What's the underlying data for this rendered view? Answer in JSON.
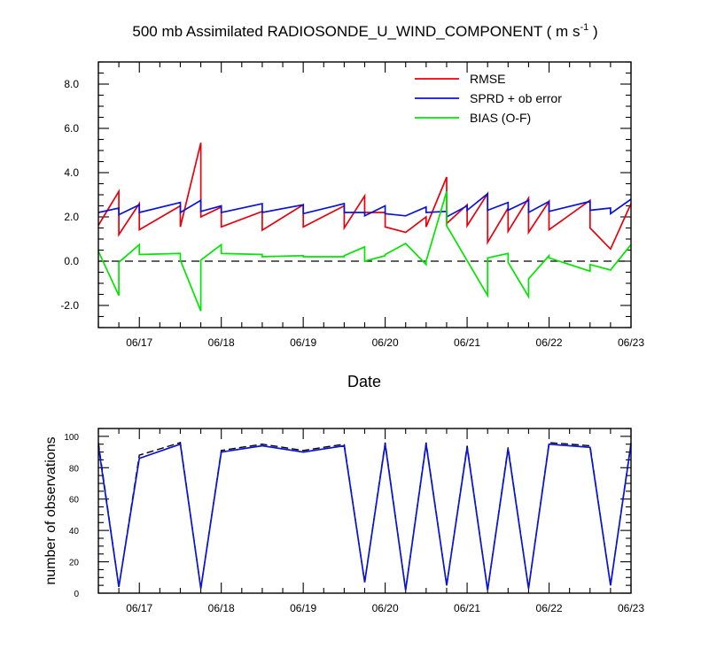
{
  "chart_data": [
    {
      "type": "line",
      "title_main": "500 mb Assimilated RADIOSONDE_U_WIND_COMPONENT ( m s",
      "title_sup": "-1",
      "title_end": " )",
      "xlabel": "Date",
      "ylabel": "",
      "xlim": [
        16.5,
        23.0
      ],
      "ylim": [
        -3.0,
        9.0
      ],
      "x_ticks": [
        17,
        18,
        19,
        20,
        21,
        22,
        23
      ],
      "x_tick_labels": [
        "06/17",
        "06/18",
        "06/19",
        "06/20",
        "06/21",
        "06/22",
        "06/23"
      ],
      "y_ticks": [
        -2,
        0,
        2,
        4,
        6,
        8
      ],
      "y_tick_labels": [
        "-2.0",
        "0.0",
        "2.0",
        "4.0",
        "6.0",
        "8.0"
      ],
      "zero_line": true,
      "legend_position": "top-right",
      "series": [
        {
          "name": "RMSE",
          "color": "#e8000b",
          "points": [
            [
              16.5,
              1.62
            ],
            [
              16.75,
              3.15
            ],
            [
              16.75,
              1.2
            ],
            [
              17.0,
              2.6
            ],
            [
              17.0,
              1.42
            ],
            [
              17.5,
              2.5
            ],
            [
              17.5,
              1.55
            ],
            [
              17.75,
              5.35
            ],
            [
              17.75,
              2.0
            ],
            [
              18.0,
              2.45
            ],
            [
              18.0,
              1.55
            ],
            [
              18.5,
              2.25
            ],
            [
              18.5,
              1.4
            ],
            [
              19.0,
              2.55
            ],
            [
              19.0,
              1.55
            ],
            [
              19.5,
              2.5
            ],
            [
              19.5,
              1.5
            ],
            [
              19.75,
              2.95
            ],
            [
              19.75,
              2.2
            ],
            [
              20.0,
              2.2
            ],
            [
              20.0,
              1.55
            ],
            [
              20.25,
              1.3
            ],
            [
              20.5,
              2.0
            ],
            [
              20.5,
              1.55
            ],
            [
              20.75,
              3.8
            ],
            [
              20.75,
              1.7
            ],
            [
              21.0,
              2.55
            ],
            [
              21.0,
              1.6
            ],
            [
              21.25,
              3.05
            ],
            [
              21.25,
              0.85
            ],
            [
              21.5,
              2.4
            ],
            [
              21.5,
              1.35
            ],
            [
              21.75,
              2.85
            ],
            [
              21.75,
              1.3
            ],
            [
              22.0,
              2.7
            ],
            [
              22.0,
              1.42
            ],
            [
              22.5,
              2.75
            ],
            [
              22.5,
              1.5
            ],
            [
              22.75,
              0.55
            ],
            [
              23.0,
              2.6
            ]
          ]
        },
        {
          "name": "SPRD + ob error",
          "color": "#0a14d6",
          "points": [
            [
              16.5,
              2.2
            ],
            [
              16.75,
              2.4
            ],
            [
              16.75,
              2.1
            ],
            [
              17.0,
              2.55
            ],
            [
              17.0,
              2.2
            ],
            [
              17.5,
              2.65
            ],
            [
              17.5,
              2.2
            ],
            [
              17.75,
              2.75
            ],
            [
              17.75,
              2.25
            ],
            [
              18.0,
              2.5
            ],
            [
              18.0,
              2.2
            ],
            [
              18.5,
              2.6
            ],
            [
              18.5,
              2.2
            ],
            [
              19.0,
              2.55
            ],
            [
              19.0,
              2.15
            ],
            [
              19.5,
              2.6
            ],
            [
              19.5,
              2.2
            ],
            [
              19.75,
              2.2
            ],
            [
              19.75,
              2.05
            ],
            [
              20.0,
              2.5
            ],
            [
              20.0,
              2.15
            ],
            [
              20.25,
              2.05
            ],
            [
              20.5,
              2.45
            ],
            [
              20.5,
              2.2
            ],
            [
              20.75,
              2.25
            ],
            [
              20.75,
              2.0
            ],
            [
              21.0,
              2.5
            ],
            [
              21.0,
              2.3
            ],
            [
              21.25,
              3.05
            ],
            [
              21.25,
              2.3
            ],
            [
              21.5,
              2.65
            ],
            [
              21.5,
              2.3
            ],
            [
              21.75,
              2.75
            ],
            [
              21.75,
              2.2
            ],
            [
              22.0,
              2.7
            ],
            [
              22.0,
              2.25
            ],
            [
              22.5,
              2.7
            ],
            [
              22.5,
              2.3
            ],
            [
              22.75,
              2.4
            ],
            [
              22.75,
              2.15
            ],
            [
              23.0,
              2.8
            ]
          ]
        },
        {
          "name": "BIAS (O-F)",
          "color": "#00e600",
          "points": [
            [
              16.5,
              0.45
            ],
            [
              16.75,
              -1.55
            ],
            [
              16.75,
              -0.05
            ],
            [
              17.0,
              0.75
            ],
            [
              17.0,
              0.3
            ],
            [
              17.5,
              0.35
            ],
            [
              17.5,
              0.05
            ],
            [
              17.75,
              -2.25
            ],
            [
              17.75,
              0.05
            ],
            [
              18.0,
              0.75
            ],
            [
              18.0,
              0.35
            ],
            [
              18.5,
              0.3
            ],
            [
              18.5,
              0.2
            ],
            [
              19.0,
              0.25
            ],
            [
              19.0,
              0.2
            ],
            [
              19.5,
              0.2
            ],
            [
              19.5,
              0.25
            ],
            [
              19.75,
              0.65
            ],
            [
              19.75,
              0.0
            ],
            [
              20.0,
              0.25
            ],
            [
              20.0,
              0.3
            ],
            [
              20.25,
              0.8
            ],
            [
              20.5,
              -0.15
            ],
            [
              20.5,
              0.0
            ],
            [
              20.75,
              3.15
            ],
            [
              20.75,
              1.6
            ],
            [
              21.25,
              -1.55
            ],
            [
              21.25,
              0.15
            ],
            [
              21.5,
              0.35
            ],
            [
              21.5,
              -0.05
            ],
            [
              21.75,
              -1.6
            ],
            [
              21.75,
              -0.8
            ],
            [
              22.0,
              0.25
            ],
            [
              22.0,
              0.15
            ],
            [
              22.5,
              -0.45
            ],
            [
              22.5,
              -0.15
            ],
            [
              22.75,
              -0.4
            ],
            [
              23.0,
              0.75
            ]
          ]
        }
      ]
    },
    {
      "type": "line",
      "ylabel": "number of observations",
      "xlim": [
        16.5,
        23.0
      ],
      "ylim": [
        0,
        105
      ],
      "x_ticks": [
        17,
        18,
        19,
        20,
        21,
        22,
        23
      ],
      "x_tick_labels": [
        "06/17",
        "06/18",
        "06/19",
        "06/20",
        "06/21",
        "06/22",
        "06/23"
      ],
      "y_ticks": [
        0,
        20,
        40,
        60,
        80,
        100
      ],
      "y_tick_labels": [
        "0",
        "20",
        "40",
        "60",
        "80",
        "100"
      ],
      "series": [
        {
          "style": "dashed",
          "color": "#000000",
          "points": [
            [
              16.5,
              96
            ],
            [
              16.75,
              4
            ],
            [
              17.0,
              88
            ],
            [
              17.5,
              96
            ],
            [
              17.75,
              3
            ],
            [
              18.0,
              91
            ],
            [
              18.5,
              95
            ],
            [
              19.0,
              91
            ],
            [
              19.5,
              95
            ],
            [
              19.75,
              7
            ],
            [
              20.0,
              96
            ],
            [
              20.25,
              2
            ],
            [
              20.5,
              96
            ],
            [
              20.75,
              5
            ],
            [
              21.0,
              94
            ],
            [
              21.25,
              2
            ],
            [
              21.5,
              93
            ],
            [
              21.75,
              3
            ],
            [
              22.0,
              96
            ],
            [
              22.5,
              94
            ],
            [
              22.75,
              5
            ],
            [
              23.0,
              96
            ]
          ]
        },
        {
          "style": "solid",
          "color": "#0a14d6",
          "points": [
            [
              16.5,
              94
            ],
            [
              16.75,
              4
            ],
            [
              17.0,
              86
            ],
            [
              17.5,
              95
            ],
            [
              17.75,
              3
            ],
            [
              18.0,
              90
            ],
            [
              18.5,
              94
            ],
            [
              19.0,
              90
            ],
            [
              19.5,
              94
            ],
            [
              19.75,
              7
            ],
            [
              20.0,
              95
            ],
            [
              20.25,
              2
            ],
            [
              20.5,
              95
            ],
            [
              20.75,
              5
            ],
            [
              21.0,
              93
            ],
            [
              21.25,
              2
            ],
            [
              21.5,
              92
            ],
            [
              21.75,
              3
            ],
            [
              22.0,
              95
            ],
            [
              22.5,
              93
            ],
            [
              22.75,
              5
            ],
            [
              23.0,
              95
            ]
          ]
        }
      ]
    }
  ]
}
